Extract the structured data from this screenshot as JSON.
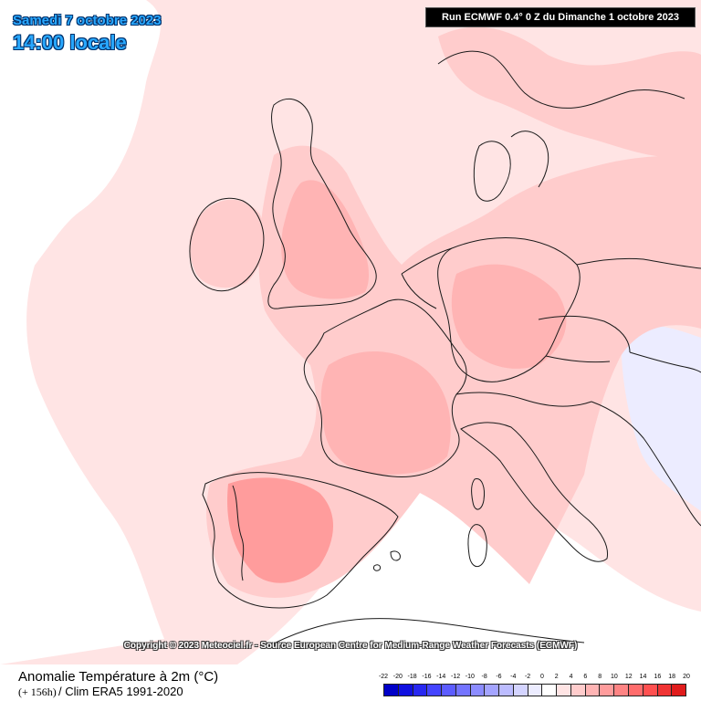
{
  "header": {
    "date": "Samedi 7 octobre 2023",
    "time": "14:00 locale",
    "run": "Run ECMWF 0.4° 0 Z du Dimanche 1 octobre 2023"
  },
  "copyright": "Copyright © 2023 Meteociel.fr - Source European Centre for Medium-Range Weather Forecasts (ECMWF)",
  "footer": {
    "parameter": "Anomalie Température à 2m (°C)",
    "lead": "(+ 156h)",
    "climatology": "/ Clim ERA5 1991-2020"
  },
  "scale": {
    "labels": [
      "-22",
      "-20",
      "-18",
      "-16",
      "-14",
      "-12",
      "-10",
      "-8",
      "-6",
      "-4",
      "-2",
      "0",
      "2",
      "4",
      "6",
      "8",
      "10",
      "12",
      "14",
      "16",
      "18",
      "20"
    ],
    "colors": [
      "#0000c8",
      "#1010e0",
      "#2828f0",
      "#4444ff",
      "#5c5cff",
      "#7474ff",
      "#8c8cff",
      "#a4a4ff",
      "#bcbcff",
      "#d4d4ff",
      "#ececff",
      "#ffffff",
      "#ffe4e4",
      "#ffcccc",
      "#ffb4b4",
      "#ff9c9c",
      "#ff8484",
      "#ff6c6c",
      "#ff5050",
      "#f03434",
      "#e01c1c"
    ]
  },
  "map_colors": {
    "ocean_neutral": "#ffffff",
    "light_anomaly": "#ffe4e4",
    "moderate_anomaly": "#ffcccc",
    "strong_anomaly": "#ffb4b4",
    "very_strong_anomaly": "#ff9c9c",
    "cool_anomaly": "#ececff",
    "boundary_line": "#1a1a1a"
  }
}
